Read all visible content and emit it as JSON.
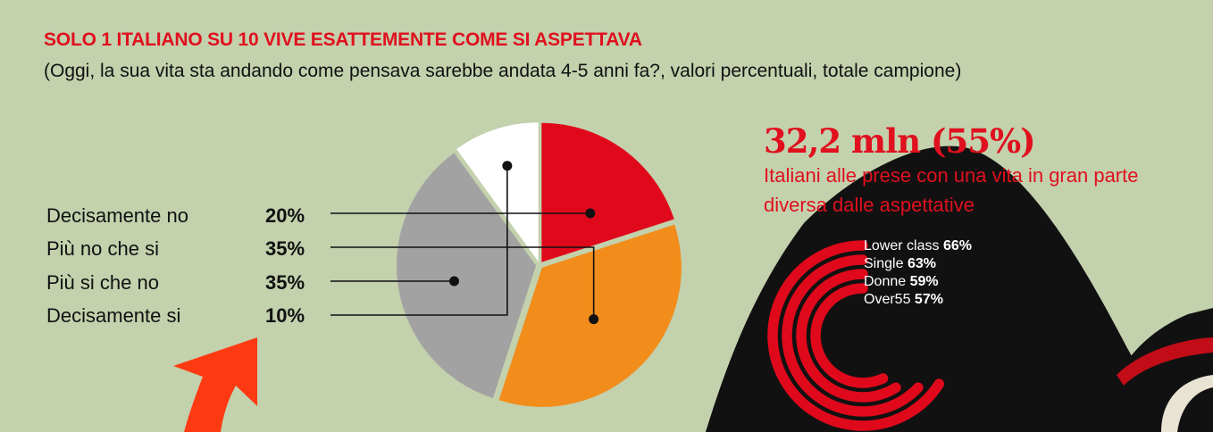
{
  "title": "SOLO 1 ITALIANO SU 10 VIVE ESATTEMENTE COME SI ASPETTAVA",
  "subtitle": "(Oggi, la sua vita sta andando come pensava sarebbe andata 4-5 anni fa?, valori percentuali, totale campione)",
  "chart_data": [
    {
      "type": "pie",
      "title": "",
      "categories": [
        "Decisamente no",
        "Più no che si",
        "Più si che no",
        "Decisamente si"
      ],
      "values": [
        20,
        35,
        35,
        10
      ],
      "value_labels": [
        "20%",
        "35%",
        "35%",
        "10%"
      ],
      "colors": [
        "#e0091b",
        "#f28c1a",
        "#a2a2a2",
        "#ffffff"
      ],
      "legend_position": "left"
    },
    {
      "type": "bar",
      "title": "",
      "categories": [
        "Lower class",
        "Single",
        "Donne",
        "Over55"
      ],
      "values": [
        66,
        63,
        59,
        57
      ],
      "value_labels": [
        "66%",
        "63%",
        "59%",
        "57%"
      ],
      "color": "#e0091b",
      "style": "radial"
    }
  ],
  "highlight": {
    "figure": "32,2 mln (55%)",
    "description": "Italiani alle prese con una vita in gran parte diversa dalle aspettative"
  },
  "colors": {
    "accent": "#e0101e",
    "background": "#c3d1ad",
    "arrow": "#ff3a12"
  }
}
